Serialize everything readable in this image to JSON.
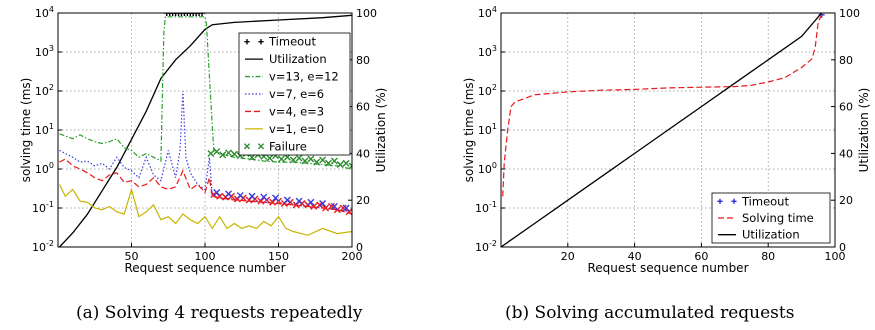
{
  "captions": {
    "a": "(a) Solving 4 requests repeatedly",
    "b": "(b) Solving accumulated requests"
  },
  "chart_data": [
    {
      "id": "a",
      "type": "line",
      "xlabel": "Request sequence number",
      "ylabel": "solving time (ms)",
      "y2label": "Utilization (%)",
      "xlim": [
        0,
        200
      ],
      "ylim": [
        0.01,
        10000
      ],
      "y2lim": [
        0,
        100
      ],
      "yscale": "log",
      "grid": true,
      "legend_position": "top-right",
      "xticks": [
        "50",
        "100",
        "150",
        "200"
      ],
      "yticks_exp": [
        "-2",
        "-1",
        "0",
        "1",
        "2",
        "3",
        "4"
      ],
      "y2ticks": [
        "0",
        "20",
        "40",
        "60",
        "80",
        "100"
      ],
      "colors": {
        "timeout": "#000000",
        "utilization": "#000000",
        "v13": "#2ca02c",
        "v7": "#3a3ae0",
        "v4": "#e8191d",
        "v1": "#c8b400",
        "failure": "#2e8b2e"
      },
      "series": [
        {
          "name": "Timeout",
          "key": "timeout",
          "style": "marker-plus",
          "axis": "left",
          "x": [
            74,
            76,
            78,
            80,
            82,
            84,
            86,
            88,
            90,
            92,
            94,
            96,
            98
          ],
          "y": [
            10000,
            10000,
            10000,
            10000,
            10000,
            10000,
            10000,
            10000,
            10000,
            10000,
            10000,
            10000,
            10000
          ]
        },
        {
          "name": "Utilization",
          "key": "utilization",
          "style": "solid",
          "axis": "right",
          "x": [
            1,
            10,
            20,
            30,
            40,
            50,
            60,
            70,
            80,
            90,
            100,
            105,
            120,
            150,
            180,
            200
          ],
          "y": [
            0,
            6,
            14,
            24,
            34,
            46,
            58,
            72,
            80,
            86,
            93,
            95,
            96,
            97,
            98,
            99
          ]
        },
        {
          "name": "v=13, e=12",
          "key": "v13",
          "style": "dashdot",
          "axis": "left",
          "x": [
            1,
            5,
            10,
            15,
            20,
            25,
            30,
            35,
            40,
            45,
            50,
            55,
            60,
            65,
            70,
            72,
            73,
            75,
            100,
            101,
            104,
            106,
            110,
            120,
            130,
            140,
            150,
            160,
            170,
            180,
            190,
            200
          ],
          "y": [
            8,
            7,
            6,
            7.5,
            6,
            5,
            4.5,
            5,
            6,
            3.5,
            3,
            2,
            2.5,
            2,
            1.6,
            3000,
            8000,
            8000,
            8000,
            5000,
            50,
            3,
            2.5,
            2,
            1.8,
            1.6,
            1.5,
            1.5,
            1.4,
            1.3,
            1.2,
            1
          ]
        },
        {
          "name": "v=7, e=6",
          "key": "v7",
          "style": "dotted",
          "axis": "left",
          "x": [
            1,
            5,
            10,
            15,
            20,
            25,
            30,
            35,
            40,
            45,
            50,
            55,
            60,
            65,
            70,
            75,
            80,
            83,
            85,
            87,
            90,
            95,
            100,
            103,
            105,
            110,
            120,
            130,
            140,
            150,
            160,
            170,
            180,
            190,
            200
          ],
          "y": [
            3,
            2.5,
            2,
            1.5,
            1.6,
            1.2,
            1.4,
            1,
            2,
            1.1,
            0.9,
            0.6,
            2,
            0.7,
            0.5,
            3,
            0.6,
            3,
            100,
            2,
            0.8,
            0.4,
            0.3,
            2,
            0.2,
            0.18,
            0.17,
            0.15,
            0.14,
            0.13,
            0.12,
            0.11,
            0.1,
            0.09,
            0.08
          ]
        },
        {
          "name": "v=4, e=3",
          "key": "v4",
          "style": "dashed",
          "axis": "left",
          "x": [
            1,
            5,
            10,
            15,
            20,
            25,
            30,
            35,
            40,
            45,
            50,
            55,
            60,
            65,
            70,
            75,
            80,
            85,
            90,
            95,
            100,
            103,
            105,
            110,
            120,
            130,
            140,
            150,
            160,
            170,
            180,
            190,
            200
          ],
          "y": [
            1.5,
            1.8,
            1.2,
            1,
            0.8,
            0.6,
            0.5,
            0.7,
            0.8,
            0.45,
            0.5,
            0.35,
            0.4,
            0.6,
            0.35,
            0.3,
            0.35,
            0.9,
            0.3,
            0.4,
            0.25,
            0.6,
            0.2,
            0.18,
            0.16,
            0.15,
            0.14,
            0.13,
            0.12,
            0.11,
            0.1,
            0.09,
            0.07
          ]
        },
        {
          "name": "v=1, e=0",
          "key": "v1",
          "style": "solid",
          "axis": "left",
          "x": [
            1,
            5,
            10,
            15,
            20,
            25,
            30,
            35,
            40,
            45,
            50,
            55,
            60,
            65,
            70,
            75,
            80,
            85,
            90,
            95,
            100,
            105,
            110,
            115,
            120,
            125,
            130,
            135,
            140,
            145,
            150,
            155,
            160,
            170,
            180,
            190,
            200
          ],
          "y": [
            0.4,
            0.2,
            0.3,
            0.15,
            0.14,
            0.1,
            0.09,
            0.11,
            0.08,
            0.07,
            0.3,
            0.06,
            0.08,
            0.12,
            0.05,
            0.06,
            0.04,
            0.07,
            0.05,
            0.04,
            0.06,
            0.03,
            0.06,
            0.03,
            0.04,
            0.03,
            0.035,
            0.03,
            0.045,
            0.035,
            0.06,
            0.03,
            0.025,
            0.02,
            0.03,
            0.022,
            0.025
          ]
        },
        {
          "name": "Failure",
          "key": "failure",
          "style": "marker-x",
          "axis": "left",
          "x": [
            104,
            108,
            112,
            116,
            120,
            124,
            128,
            132,
            136,
            140,
            144,
            148,
            152,
            156,
            160,
            164,
            168,
            172,
            176,
            180,
            184,
            188,
            192,
            196,
            200
          ],
          "y": [
            2.5,
            2.8,
            2.3,
            2.6,
            2.4,
            2.2,
            2.5,
            2.0,
            2.3,
            2.1,
            1.9,
            2.2,
            1.8,
            2.0,
            1.7,
            1.9,
            1.6,
            1.8,
            1.5,
            1.7,
            1.4,
            1.6,
            1.3,
            1.4,
            1.2
          ]
        },
        {
          "name": "",
          "key": "v4",
          "style": "marker-x",
          "axis": "left",
          "x": [
            106,
            110,
            114,
            118,
            122,
            126,
            130,
            134,
            138,
            142,
            146,
            150,
            154,
            158,
            162,
            166,
            170,
            174,
            178,
            182,
            186,
            190,
            194,
            198
          ],
          "y": [
            0.22,
            0.2,
            0.19,
            0.2,
            0.17,
            0.18,
            0.16,
            0.17,
            0.15,
            0.16,
            0.14,
            0.15,
            0.13,
            0.14,
            0.12,
            0.13,
            0.12,
            0.11,
            0.12,
            0.1,
            0.11,
            0.09,
            0.1,
            0.08
          ]
        },
        {
          "name": "",
          "key": "v7",
          "style": "marker-x",
          "axis": "left",
          "x": [
            108,
            116,
            124,
            132,
            140,
            148,
            156,
            164,
            172,
            180,
            188,
            196
          ],
          "y": [
            0.25,
            0.23,
            0.21,
            0.2,
            0.19,
            0.18,
            0.16,
            0.15,
            0.14,
            0.13,
            0.11,
            0.1
          ]
        }
      ]
    },
    {
      "id": "b",
      "type": "line",
      "xlabel": "Request sequence number",
      "ylabel": "solving time (ms)",
      "y2label": "Utilization (%)",
      "xlim": [
        0,
        100
      ],
      "ylim": [
        0.01,
        10000
      ],
      "y2lim": [
        0,
        100
      ],
      "yscale": "log",
      "grid": true,
      "legend_position": "lower-right",
      "xticks": [
        "20",
        "40",
        "60",
        "80",
        "100"
      ],
      "yticks_exp": [
        "-2",
        "-1",
        "0",
        "1",
        "2",
        "3",
        "4"
      ],
      "y2ticks": [
        "0",
        "20",
        "40",
        "60",
        "80",
        "100"
      ],
      "colors": {
        "timeout": "#2a2ad8",
        "solving": "#e8191d",
        "utilization": "#000000"
      },
      "series": [
        {
          "name": "Timeout",
          "key": "timeout",
          "style": "marker-plus",
          "axis": "left",
          "x": [
            96
          ],
          "y": [
            9000
          ]
        },
        {
          "name": "Solving time",
          "key": "solving",
          "style": "dashed",
          "axis": "left",
          "x": [
            0.5,
            1,
            2,
            3,
            4,
            5,
            10,
            20,
            30,
            40,
            50,
            60,
            70,
            75,
            80,
            85,
            90,
            93,
            94,
            95,
            96
          ],
          "y": [
            0.2,
            1.5,
            10,
            40,
            50,
            55,
            80,
            95,
            105,
            110,
            120,
            125,
            130,
            140,
            170,
            220,
            400,
            650,
            1200,
            6000,
            9000
          ]
        },
        {
          "name": "Utilization",
          "key": "utilization",
          "style": "solid",
          "axis": "right",
          "x": [
            0,
            10,
            20,
            30,
            40,
            50,
            60,
            70,
            80,
            90,
            96
          ],
          "y": [
            0,
            10,
            20,
            30,
            40,
            50,
            60,
            70,
            80,
            90,
            100
          ]
        }
      ]
    }
  ]
}
